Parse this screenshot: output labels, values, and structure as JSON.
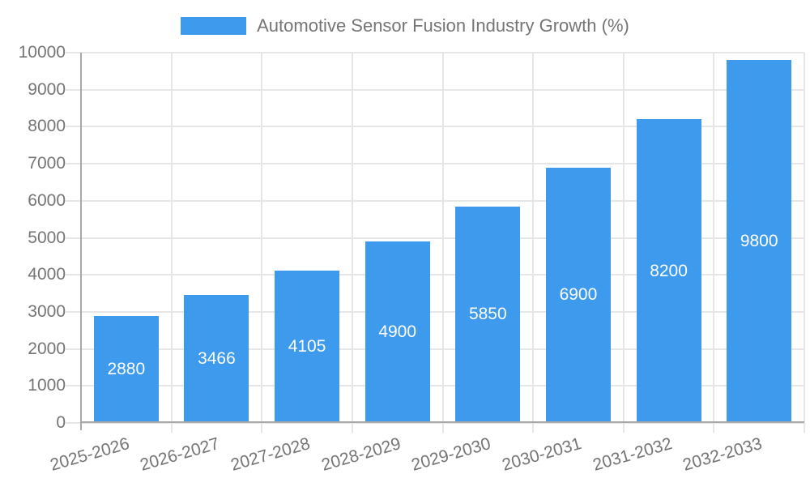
{
  "chart_data": {
    "type": "bar",
    "title": "Automotive Sensor Fusion Industry Growth (%)",
    "legend_position": "top",
    "grid": "on",
    "categories": [
      "2025-2026",
      "2026-2027",
      "2027-2028",
      "2028-2029",
      "2029-2030",
      "2030-2031",
      "2031-2032",
      "2032-2033"
    ],
    "values": [
      2880,
      3466,
      4105,
      4900,
      5850,
      6900,
      8200,
      9800
    ],
    "xlabel": "",
    "ylabel": "",
    "ylim": [
      0,
      10000
    ],
    "y_ticks": [
      0,
      1000,
      2000,
      3000,
      4000,
      5000,
      6000,
      7000,
      8000,
      9000,
      10000
    ],
    "bar_color": "#3D9AEC",
    "bar_label_color": "#FFFFFF",
    "axis_text_color": "#757575",
    "grid_color": "#E6E6E6",
    "axis_line_color": "#A8A8A8",
    "background": "#FFFFFF"
  }
}
